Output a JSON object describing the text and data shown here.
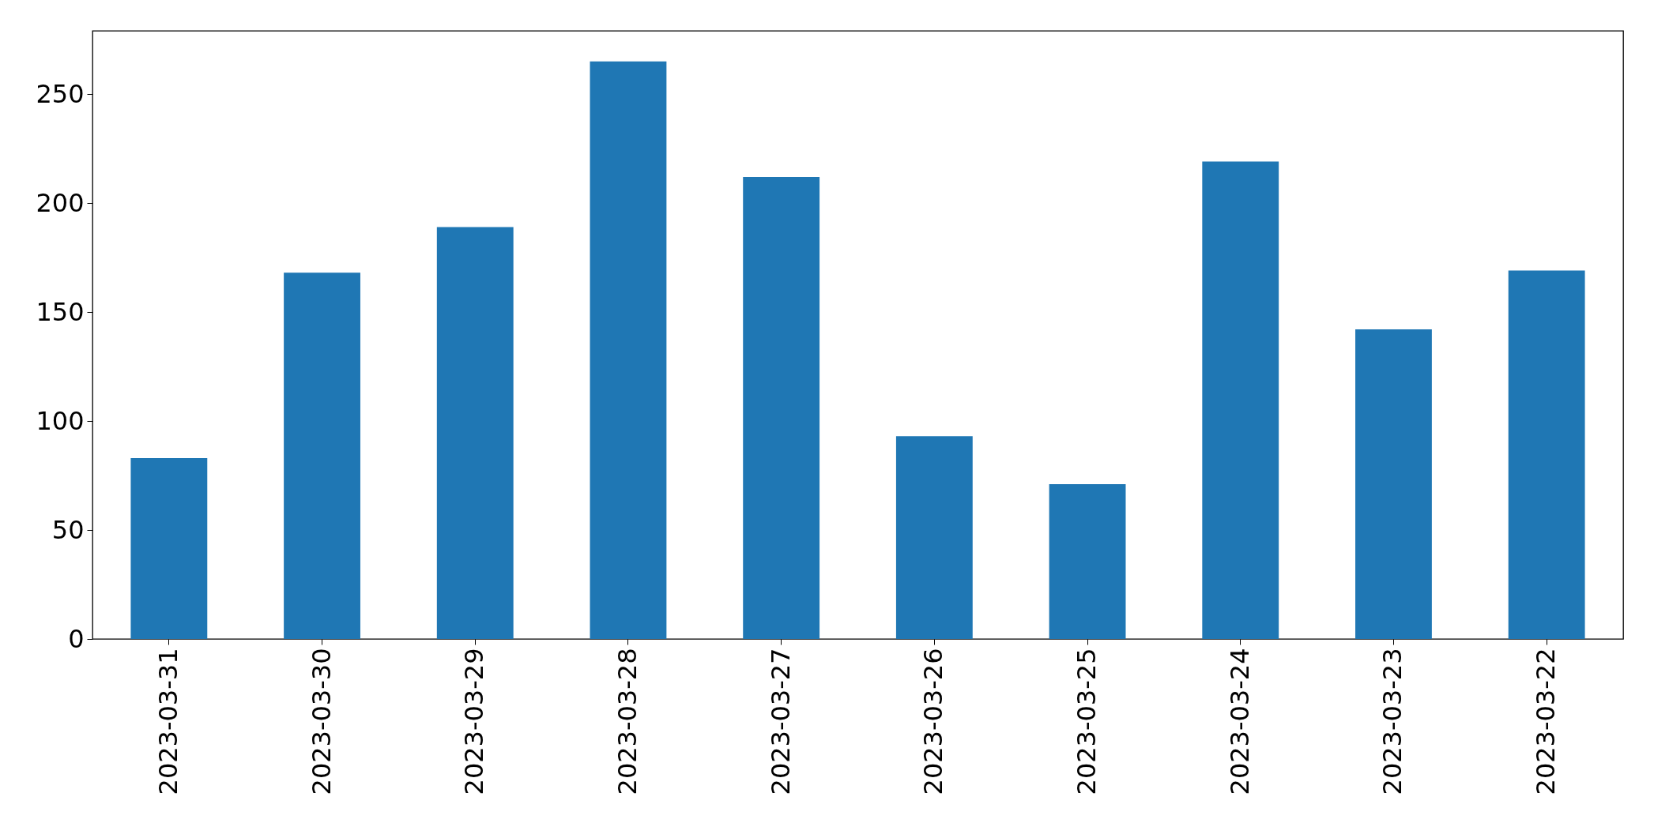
{
  "chart_data": {
    "type": "bar",
    "categories": [
      "2023-03-31",
      "2023-03-30",
      "2023-03-29",
      "2023-03-28",
      "2023-03-27",
      "2023-03-26",
      "2023-03-25",
      "2023-03-24",
      "2023-03-23",
      "2023-03-22"
    ],
    "values": [
      83,
      168,
      189,
      265,
      212,
      93,
      71,
      219,
      142,
      169
    ],
    "color": "#1f77b4",
    "ylim": [
      0,
      279
    ],
    "yticks": [
      0,
      50,
      100,
      150,
      200,
      250
    ],
    "grid": false
  }
}
